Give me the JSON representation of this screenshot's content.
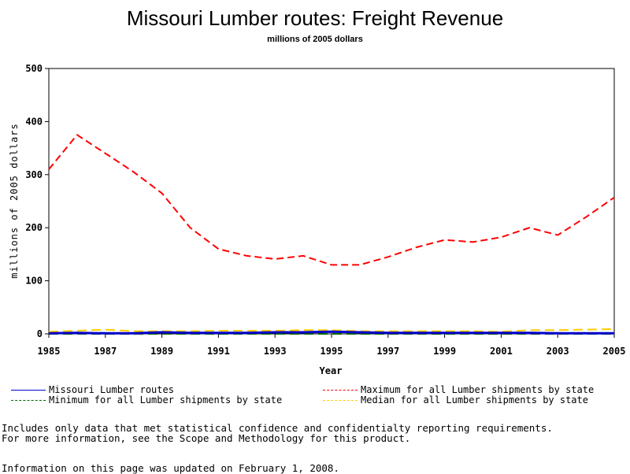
{
  "chart_data": {
    "type": "line",
    "title": "Missouri Lumber routes: Freight Revenue",
    "subtitle": "millions of 2005 dollars",
    "xlabel": "Year",
    "ylabel": "millions of 2005 dollars",
    "xlim": [
      1985,
      2005
    ],
    "ylim": [
      0,
      500
    ],
    "x_ticks": [
      "1985",
      "1987",
      "1989",
      "1991",
      "1993",
      "1995",
      "1997",
      "1999",
      "2001",
      "2003",
      "2005"
    ],
    "y_ticks": [
      "0",
      "100",
      "200",
      "300",
      "400",
      "500"
    ],
    "x": [
      1985,
      1986,
      1987,
      1988,
      1989,
      1990,
      1991,
      1992,
      1993,
      1994,
      1995,
      1996,
      1997,
      1998,
      1999,
      2000,
      2001,
      2002,
      2003,
      2004,
      2005
    ],
    "series": [
      {
        "name": "Missouri Lumber routes",
        "color": "#0000cc",
        "dash": "solid",
        "values": [
          1,
          2,
          1,
          1,
          3,
          2,
          2,
          2,
          3,
          3,
          4,
          3,
          2,
          2,
          2,
          2,
          2,
          2,
          1,
          1,
          1
        ]
      },
      {
        "name": "Maximum for all Lumber shipments by state",
        "color": "#ff0000",
        "dash": "dashed",
        "values": [
          310,
          375,
          340,
          305,
          265,
          200,
          160,
          147,
          141,
          147,
          130,
          130,
          145,
          163,
          177,
          173,
          182,
          200,
          186,
          220,
          257
        ]
      },
      {
        "name": "Minimum for all Lumber shipments by state",
        "color": "#006600",
        "dash": "dashed",
        "values": [
          0,
          0,
          0,
          0,
          0,
          0,
          0,
          0,
          0,
          0,
          0,
          0,
          0,
          0,
          0,
          0,
          0,
          0,
          0,
          0,
          0
        ]
      },
      {
        "name": "Median for all Lumber shipments by state",
        "color": "#ffcc00",
        "dash": "dashed",
        "values": [
          4,
          6,
          8,
          5,
          5,
          5,
          6,
          6,
          6,
          7,
          7,
          5,
          5,
          5,
          5,
          5,
          4,
          7,
          7,
          8,
          9
        ]
      }
    ]
  },
  "footnotes": {
    "line1": "Includes only data that met statistical confidence and confidentialty reporting requirements.",
    "line2": "For more information, see the Scope and Methodology for this product.",
    "line3": "Information on this page was updated on February 1, 2008."
  }
}
